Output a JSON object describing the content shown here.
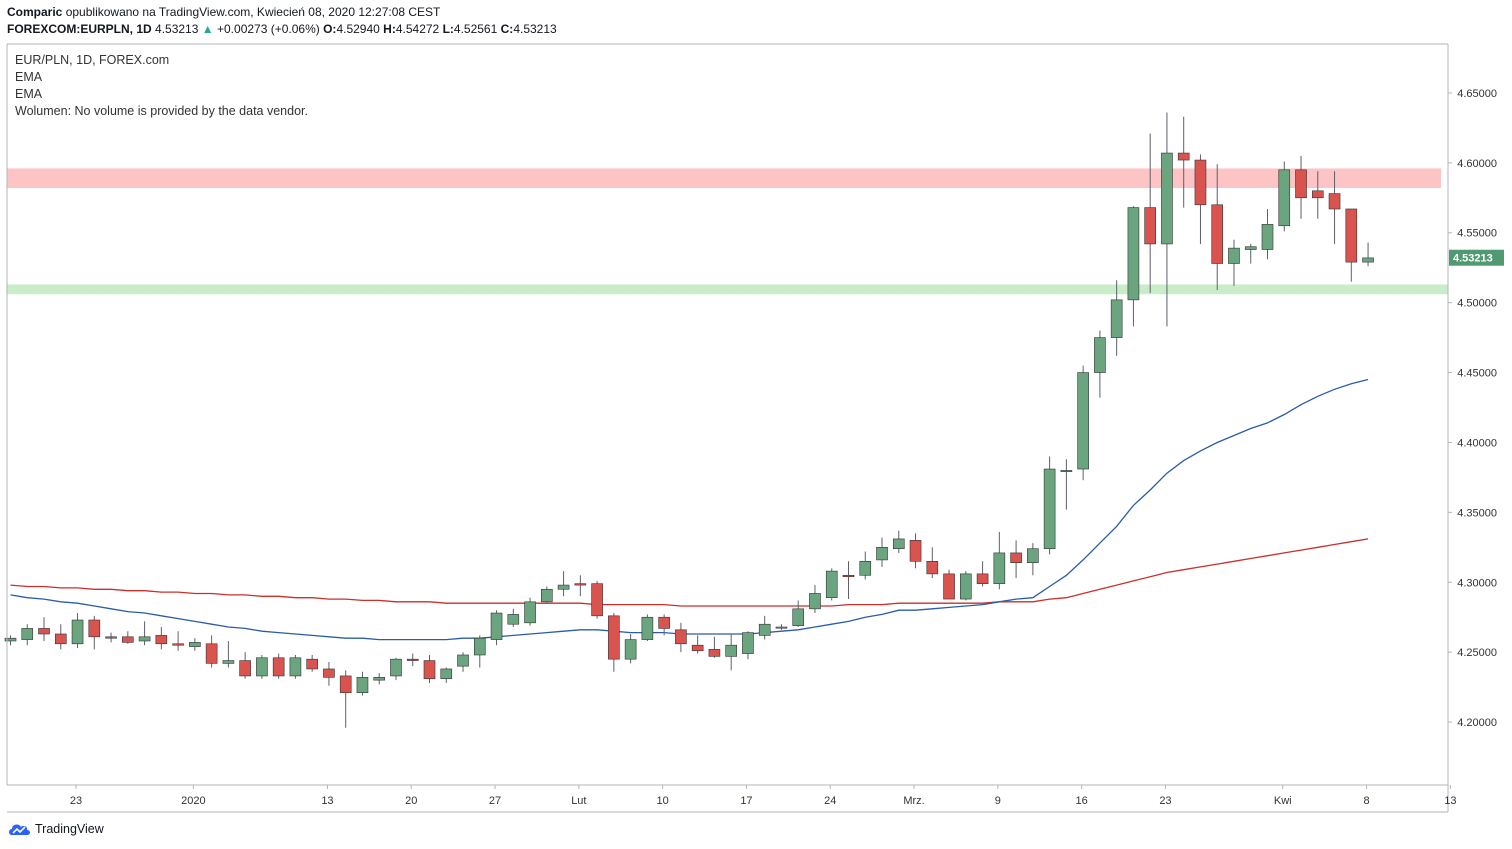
{
  "header": {
    "author": "Comparic",
    "published": "opublikowano na TradingView.com, Kwiecień 08, 2020 12:27:08 CEST",
    "symbol": "FOREXCOM:EURPLN, 1D",
    "price": "4.53213",
    "arrow": "▲",
    "change": "+0.00273 (+0.06%)",
    "o_label": "O:",
    "o": "4.52940",
    "h_label": "H:",
    "h": "4.54272",
    "l_label": "L:",
    "l": "4.52561",
    "c_label": "C:",
    "c": "4.53213"
  },
  "legend": {
    "title": "EUR/PLN, 1D, FOREX.com",
    "ema1": "EMA",
    "ema2": "EMA",
    "volume": "Wolumen: No volume is provided by the data vendor."
  },
  "footer": {
    "brand": "TradingView"
  },
  "colors": {
    "up": "#6aa57f",
    "down": "#d9534f",
    "wick": "#5d606b",
    "ema_fast": "#2a5ca8",
    "ema_slow": "#c8302c",
    "resistance": "#fcc4c4",
    "support": "#c9ecc9",
    "price_label": "#509a72"
  },
  "chart_data": {
    "type": "candlestick",
    "title": "EUR/PLN, 1D, FOREX.com",
    "ylim": [
      4.155,
      4.685
    ],
    "y_ticks": [
      "4.20000",
      "4.25000",
      "4.30000",
      "4.35000",
      "4.40000",
      "4.45000",
      "4.50000",
      "4.55000",
      "4.60000",
      "4.65000"
    ],
    "x_ticks": [
      {
        "label": "23",
        "index": 4
      },
      {
        "label": "2020",
        "index": 11
      },
      {
        "label": "13",
        "index": 19
      },
      {
        "label": "20",
        "index": 24
      },
      {
        "label": "27",
        "index": 29
      },
      {
        "label": "Lut",
        "index": 34
      },
      {
        "label": "10",
        "index": 39
      },
      {
        "label": "17",
        "index": 44
      },
      {
        "label": "24",
        "index": 49
      },
      {
        "label": "Mrz.",
        "index": 54
      },
      {
        "label": "9",
        "index": 59
      },
      {
        "label": "16",
        "index": 64
      },
      {
        "label": "23",
        "index": 69
      },
      {
        "label": "Kwi",
        "index": 76
      },
      {
        "label": "8",
        "index": 81
      },
      {
        "label": "13",
        "index": 86
      }
    ],
    "last_price_label": "4.53213",
    "last_price": 4.53213,
    "resistance_zone": [
      4.582,
      4.596
    ],
    "support_zone": [
      4.506,
      4.513
    ],
    "candles": [
      [
        4.258,
        4.262,
        4.255,
        4.26
      ],
      [
        4.259,
        4.27,
        4.255,
        4.267
      ],
      [
        4.267,
        4.275,
        4.258,
        4.263
      ],
      [
        4.263,
        4.27,
        4.252,
        4.256
      ],
      [
        4.256,
        4.278,
        4.253,
        4.273
      ],
      [
        4.273,
        4.276,
        4.252,
        4.261
      ],
      [
        4.261,
        4.264,
        4.257,
        4.26
      ],
      [
        4.261,
        4.265,
        4.256,
        4.257
      ],
      [
        4.258,
        4.272,
        4.255,
        4.261
      ],
      [
        4.262,
        4.268,
        4.252,
        4.256
      ],
      [
        4.256,
        4.265,
        4.251,
        4.255
      ],
      [
        4.254,
        4.26,
        4.251,
        4.257
      ],
      [
        4.256,
        4.262,
        4.239,
        4.242
      ],
      [
        4.242,
        4.258,
        4.239,
        4.244
      ],
      [
        4.244,
        4.25,
        4.231,
        4.233
      ],
      [
        4.233,
        4.248,
        4.231,
        4.246
      ],
      [
        4.246,
        4.249,
        4.231,
        4.233
      ],
      [
        4.233,
        4.248,
        4.231,
        4.246
      ],
      [
        4.245,
        4.248,
        4.236,
        4.238
      ],
      [
        4.238,
        4.243,
        4.226,
        4.232
      ],
      [
        4.233,
        4.237,
        4.196,
        4.221
      ],
      [
        4.221,
        4.236,
        4.219,
        4.232
      ],
      [
        4.23,
        4.235,
        4.227,
        4.232
      ],
      [
        4.233,
        4.246,
        4.23,
        4.245
      ],
      [
        4.245,
        4.249,
        4.24,
        4.244
      ],
      [
        4.244,
        4.248,
        4.228,
        4.231
      ],
      [
        4.231,
        4.239,
        4.228,
        4.238
      ],
      [
        4.24,
        4.25,
        4.236,
        4.248
      ],
      [
        4.248,
        4.262,
        4.239,
        4.26
      ],
      [
        4.259,
        4.28,
        4.255,
        4.278
      ],
      [
        4.27,
        4.281,
        4.268,
        4.277
      ],
      [
        4.271,
        4.289,
        4.269,
        4.286
      ],
      [
        4.286,
        4.297,
        4.285,
        4.295
      ],
      [
        4.295,
        4.308,
        4.29,
        4.298
      ],
      [
        4.299,
        4.305,
        4.29,
        4.298
      ],
      [
        4.299,
        4.301,
        4.274,
        4.276
      ],
      [
        4.276,
        4.278,
        4.236,
        4.245
      ],
      [
        4.245,
        4.263,
        4.242,
        4.259
      ],
      [
        4.259,
        4.277,
        4.258,
        4.275
      ],
      [
        4.275,
        4.277,
        4.262,
        4.267
      ],
      [
        4.266,
        4.271,
        4.25,
        4.256
      ],
      [
        4.255,
        4.262,
        4.249,
        4.251
      ],
      [
        4.252,
        4.261,
        4.246,
        4.247
      ],
      [
        4.247,
        4.263,
        4.237,
        4.255
      ],
      [
        4.249,
        4.265,
        4.245,
        4.264
      ],
      [
        4.262,
        4.276,
        4.259,
        4.27
      ],
      [
        4.268,
        4.27,
        4.266,
        4.268
      ],
      [
        4.269,
        4.287,
        4.268,
        4.281
      ],
      [
        4.281,
        4.298,
        4.278,
        4.292
      ],
      [
        4.289,
        4.31,
        4.287,
        4.308
      ],
      [
        4.305,
        4.315,
        4.288,
        4.304
      ],
      [
        4.305,
        4.322,
        4.302,
        4.315
      ],
      [
        4.316,
        4.332,
        4.311,
        4.325
      ],
      [
        4.324,
        4.337,
        4.321,
        4.331
      ],
      [
        4.33,
        4.335,
        4.31,
        4.315
      ],
      [
        4.315,
        4.325,
        4.303,
        4.306
      ],
      [
        4.306,
        4.309,
        4.288,
        4.288
      ],
      [
        4.288,
        4.308,
        4.287,
        4.306
      ],
      [
        4.306,
        4.315,
        4.297,
        4.299
      ],
      [
        4.299,
        4.336,
        4.295,
        4.321
      ],
      [
        4.321,
        4.33,
        4.303,
        4.314
      ],
      [
        4.314,
        4.328,
        4.305,
        4.324
      ],
      [
        4.324,
        4.39,
        4.32,
        4.381
      ],
      [
        4.38,
        4.388,
        4.352,
        4.38
      ],
      [
        4.381,
        4.455,
        4.373,
        4.45
      ],
      [
        4.45,
        4.48,
        4.432,
        4.475
      ],
      [
        4.475,
        4.516,
        4.462,
        4.502
      ],
      [
        4.502,
        4.569,
        4.483,
        4.568
      ],
      [
        4.568,
        4.621,
        4.507,
        4.542
      ],
      [
        4.542,
        4.636,
        4.483,
        4.607
      ],
      [
        4.607,
        4.633,
        4.568,
        4.602
      ],
      [
        4.602,
        4.606,
        4.542,
        4.57
      ],
      [
        4.57,
        4.599,
        4.509,
        4.528
      ],
      [
        4.528,
        4.545,
        4.512,
        4.539
      ],
      [
        4.538,
        4.542,
        4.528,
        4.54
      ],
      [
        4.538,
        4.567,
        4.531,
        4.556
      ],
      [
        4.555,
        4.601,
        4.551,
        4.595
      ],
      [
        4.595,
        4.605,
        4.56,
        4.575
      ],
      [
        4.58,
        4.594,
        4.56,
        4.575
      ],
      [
        4.578,
        4.594,
        4.542,
        4.567
      ],
      [
        4.567,
        4.567,
        4.515,
        4.529
      ],
      [
        4.529,
        4.543,
        4.526,
        4.532
      ]
    ],
    "ema_fast": [
      4.291,
      4.289,
      4.288,
      4.286,
      4.285,
      4.283,
      4.281,
      4.279,
      4.278,
      4.276,
      4.274,
      4.272,
      4.27,
      4.268,
      4.267,
      4.265,
      4.264,
      4.263,
      4.262,
      4.261,
      4.26,
      4.26,
      4.259,
      4.259,
      4.259,
      4.259,
      4.259,
      4.26,
      4.26,
      4.261,
      4.262,
      4.263,
      4.264,
      4.265,
      4.266,
      4.266,
      4.265,
      4.264,
      4.264,
      4.264,
      4.263,
      4.263,
      4.263,
      4.263,
      4.263,
      4.264,
      4.265,
      4.266,
      4.268,
      4.27,
      4.272,
      4.275,
      4.277,
      4.28,
      4.28,
      4.281,
      4.282,
      4.283,
      4.284,
      4.286,
      4.288,
      4.289,
      4.297,
      4.305,
      4.316,
      4.328,
      4.34,
      4.355,
      4.366,
      4.378,
      4.387,
      4.394,
      4.4,
      4.405,
      4.41,
      4.414,
      4.42,
      4.427,
      4.433,
      4.438,
      4.442,
      4.445
    ],
    "ema_slow": [
      4.298,
      4.297,
      4.297,
      4.296,
      4.296,
      4.295,
      4.295,
      4.294,
      4.294,
      4.293,
      4.293,
      4.292,
      4.292,
      4.291,
      4.291,
      4.29,
      4.29,
      4.289,
      4.289,
      4.288,
      4.288,
      4.287,
      4.287,
      4.286,
      4.286,
      4.286,
      4.285,
      4.285,
      4.285,
      4.285,
      4.285,
      4.285,
      4.285,
      4.285,
      4.285,
      4.284,
      4.284,
      4.284,
      4.284,
      4.284,
      4.283,
      4.283,
      4.283,
      4.283,
      4.283,
      4.283,
      4.283,
      4.283,
      4.283,
      4.283,
      4.284,
      4.284,
      4.284,
      4.285,
      4.285,
      4.285,
      4.285,
      4.285,
      4.285,
      4.286,
      4.286,
      4.286,
      4.288,
      4.289,
      4.292,
      4.295,
      4.298,
      4.301,
      4.304,
      4.307,
      4.309,
      4.311,
      4.313,
      4.315,
      4.317,
      4.319,
      4.321,
      4.323,
      4.325,
      4.327,
      4.329,
      4.331
    ]
  }
}
